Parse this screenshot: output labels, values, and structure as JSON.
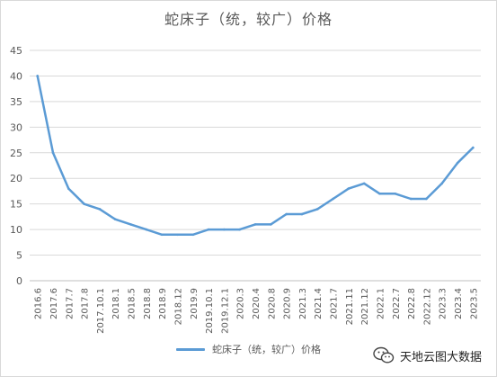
{
  "chart_data": {
    "type": "line",
    "title": "蛇床子（统，较广）价格",
    "xlabel": "",
    "ylabel": "",
    "ylim": [
      0,
      45
    ],
    "yticks": [
      0,
      5,
      10,
      15,
      20,
      25,
      30,
      35,
      40,
      45
    ],
    "grid": true,
    "legend_position": "bottom",
    "categories": [
      "2016.6",
      "2017.6",
      "2017.7",
      "2017.8",
      "2017.10.1",
      "2018.1",
      "2018.5",
      "2018.8",
      "2018.9",
      "2018.12",
      "2019.9",
      "2019.10.1",
      "2019.12.1",
      "2020.3",
      "2020.4",
      "2020.8",
      "2020.9",
      "2021.3",
      "2021.4",
      "2021.7",
      "2021.11",
      "2021.12",
      "2022.1",
      "2022.7",
      "2022.8",
      "2022.12",
      "2023.3",
      "2023.4",
      "2023.5"
    ],
    "series": [
      {
        "name": "蛇床子（统，较广）价格",
        "color": "#5b9bd5",
        "values": [
          40,
          25,
          18,
          15,
          14,
          12,
          11,
          10,
          9,
          9,
          9,
          10,
          10,
          10,
          11,
          11,
          13,
          13,
          14,
          16,
          18,
          19,
          17,
          17,
          16,
          16,
          19,
          23,
          26
        ]
      }
    ]
  },
  "watermark": {
    "text": "天地云图大数据",
    "icon": "wechat-icon"
  }
}
